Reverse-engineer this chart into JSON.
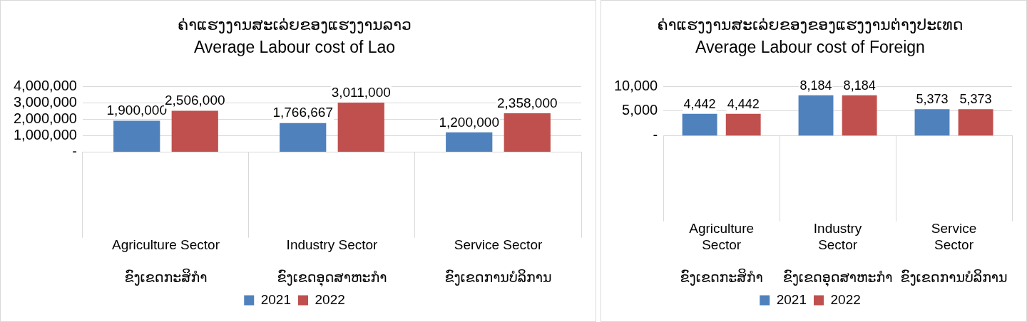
{
  "chart_data": [
    {
      "type": "bar",
      "title": "ຄ່າແຮງງານສະເລ່ຍຂອງແຮງງານລາວ",
      "subtitle": "Average Labour cost of Lao",
      "categories": [
        "Agriculture Sector\nຂົງເຂດກະສິກຳ",
        "Industry Sector\nຂົງເຂດອຸດສາຫະກຳ",
        "Service Sector\nຂົງເຂດການບໍລິການ"
      ],
      "series": [
        {
          "name": "2021",
          "color": "#4f81bd",
          "values": [
            1900000,
            1766667,
            1200000
          ],
          "value_labels": [
            "1,900,000",
            "1,766,667",
            "1,200,000"
          ]
        },
        {
          "name": "2022",
          "color": "#c0504d",
          "values": [
            2506000,
            3011000,
            2358000
          ],
          "value_labels": [
            "2,506,000",
            "3,011,000",
            "2,358,000"
          ]
        }
      ],
      "ylim": [
        0,
        4000000
      ],
      "yticks": [
        {
          "value": 0,
          "label": "-"
        },
        {
          "value": 1000000,
          "label": "1,000,000"
        },
        {
          "value": 2000000,
          "label": "2,000,000"
        },
        {
          "value": 3000000,
          "label": "3,000,000"
        },
        {
          "value": 4000000,
          "label": "4,000,000"
        }
      ],
      "grid": "y",
      "legend": "bottom"
    },
    {
      "type": "bar",
      "title": "ຄ່າແຮງງານສະເລ່ຍຂອງຂອງແຮງງານຕ່າງປະເທດ",
      "subtitle": "Average Labour cost of Foreign",
      "categories": [
        "Agriculture Sector\nຂົງເຂດກະສິກຳ",
        "Industry Sector\nຂົງເຂດອຸດສາຫະກຳ",
        "Service Sector\nຂົງເຂດການບໍລິການ"
      ],
      "series": [
        {
          "name": "2021",
          "color": "#4f81bd",
          "values": [
            4442,
            8184,
            5373
          ],
          "value_labels": [
            "4,442",
            "8,184",
            "5,373"
          ]
        },
        {
          "name": "2022",
          "color": "#c0504d",
          "values": [
            4442,
            8184,
            5373
          ],
          "value_labels": [
            "4,442",
            "8,184",
            "5,373"
          ]
        }
      ],
      "ylim": [
        0,
        10000
      ],
      "yticks": [
        {
          "value": 0,
          "label": "-"
        },
        {
          "value": 5000,
          "label": "5,000"
        },
        {
          "value": 10000,
          "label": "10,000"
        }
      ],
      "grid": "y",
      "legend": "bottom"
    }
  ]
}
